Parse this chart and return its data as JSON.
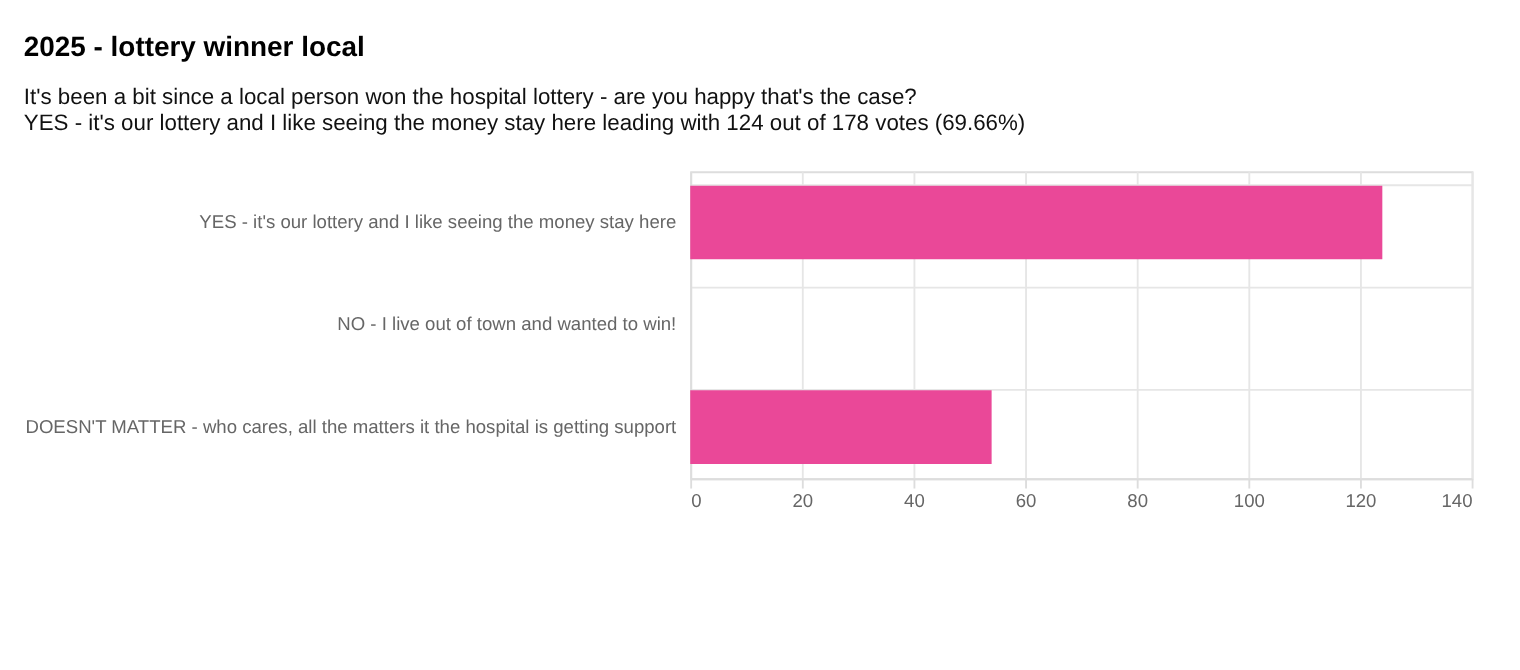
{
  "chart_data": {
    "type": "bar",
    "orientation": "horizontal",
    "title": "2025 - lottery winner local",
    "subtitle": "It's been a bit since a local person won the hospital lottery - are you happy that's the case?",
    "annotations": [
      "YES - it's our lottery and I like seeing the money stay here leading with 124 out of 178 votes (69.66%)"
    ],
    "categories": [
      "YES - it's our lottery and I like seeing the money stay here",
      "NO - I live out of town and wanted to win!",
      "DOESN'T MATTER - who cares, all the matters it the hospital is getting support"
    ],
    "values": [
      124,
      0,
      54
    ],
    "color": "#ea4898",
    "xlim": [
      0,
      140
    ],
    "xticks": [
      0,
      20,
      40,
      60,
      80,
      100,
      120,
      140
    ],
    "grid": true
  }
}
